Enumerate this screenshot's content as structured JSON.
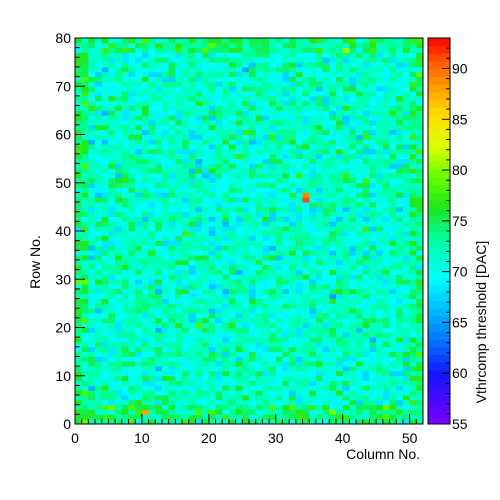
{
  "chart_data": {
    "type": "heatmap",
    "title": "",
    "xlabel": "Column No.",
    "ylabel": "Row No.",
    "zlabel": "Vthrcomp threshold [DAC]",
    "xlim": [
      0,
      52
    ],
    "ylim": [
      0,
      80
    ],
    "zlim": [
      55,
      93
    ],
    "n_columns": 52,
    "n_rows": 80,
    "x_ticks": [
      0,
      10,
      20,
      30,
      40,
      50
    ],
    "y_ticks": [
      0,
      10,
      20,
      30,
      40,
      50,
      60,
      70,
      80
    ],
    "z_ticks": [
      55,
      60,
      65,
      70,
      75,
      80,
      85,
      90
    ],
    "colorbar_position": "right",
    "grid": false,
    "typical_value_range": [
      65,
      78
    ],
    "notable_cells": [
      {
        "column": 34,
        "row": 46,
        "value": 91
      },
      {
        "column": 34,
        "row": 47,
        "value": 89
      },
      {
        "column": 10,
        "row": 2,
        "value": 88
      }
    ]
  }
}
